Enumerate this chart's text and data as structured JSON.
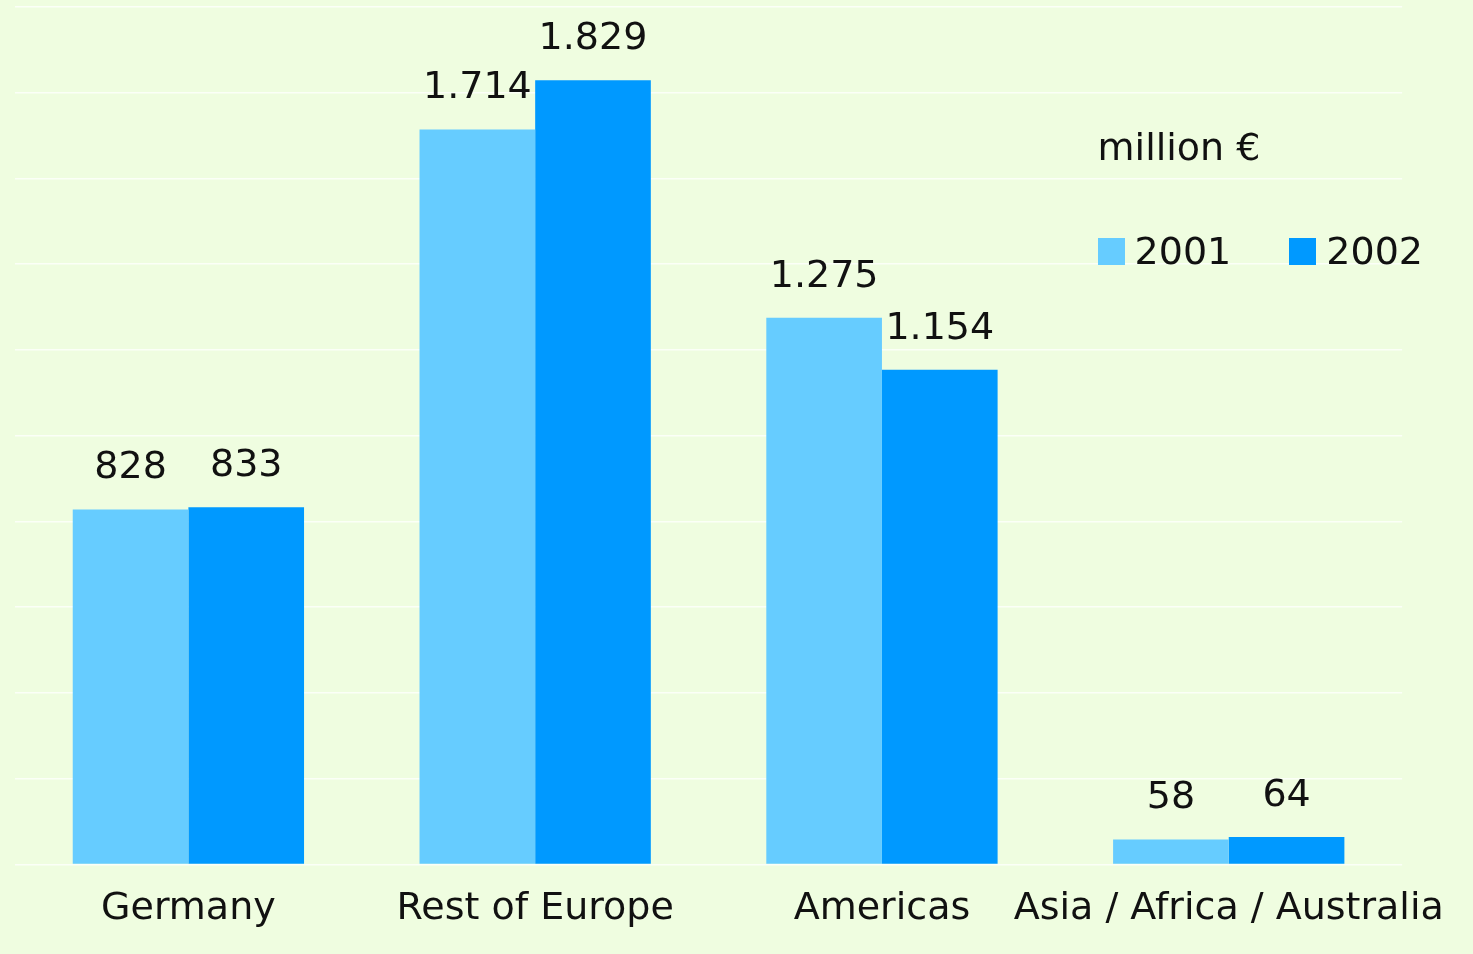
{
  "chart_data": {
    "type": "bar",
    "legend_title": "million €",
    "categories": [
      "Germany",
      "Rest of Europe",
      "Americas",
      "Asia / Africa / Australia"
    ],
    "series": [
      {
        "name": "2001",
        "color": "#66ccff",
        "values": [
          828,
          1714,
          1275,
          58
        ],
        "value_labels": [
          "828",
          "1.714",
          "1.275",
          "58"
        ]
      },
      {
        "name": "2002",
        "color": "#0099ff",
        "values": [
          833,
          1829,
          1154,
          64
        ],
        "value_labels": [
          "833",
          "1.829",
          "1.154",
          "64"
        ]
      }
    ],
    "ylim": [
      0,
      2000
    ],
    "yticks": [
      {
        "value": 0,
        "label": null
      },
      {
        "value": 200,
        "label": null
      },
      {
        "value": 400,
        "label": null
      },
      {
        "value": 600,
        "label": null
      },
      {
        "value": 800,
        "label": null
      },
      {
        "value": 1000,
        "label": null
      },
      {
        "value": 1200,
        "label": null
      },
      {
        "value": 1400,
        "label": null
      },
      {
        "value": 1600,
        "label": null
      },
      {
        "value": 1800,
        "label": null
      },
      {
        "value": 2000,
        "label": null
      }
    ],
    "grid": "y",
    "tick_labels": "x",
    "legend": "top right"
  }
}
